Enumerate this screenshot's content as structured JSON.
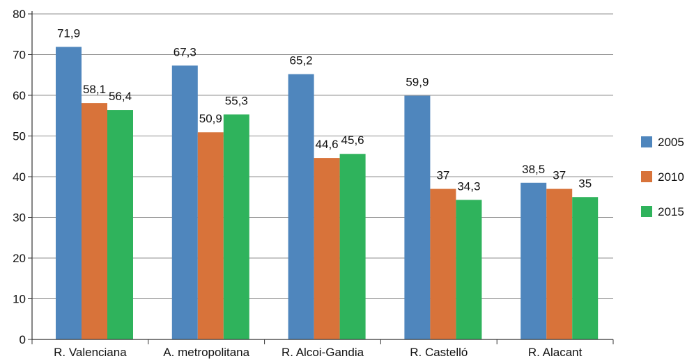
{
  "chart_data": {
    "type": "bar",
    "title": "",
    "xlabel": "",
    "ylabel": "",
    "categories": [
      "R. Valenciana",
      "A. metropolitana",
      "R. Alcoi-Gandia",
      "R. Castelló",
      "R. Alacant"
    ],
    "series": [
      {
        "name": "2005",
        "color": "#4f86bd",
        "values": [
          71.9,
          67.3,
          65.2,
          59.9,
          38.5
        ],
        "labels": [
          "71,9",
          "67,3",
          "65,2",
          "59,9",
          "38,5"
        ]
      },
      {
        "name": "2010",
        "color": "#d8733a",
        "values": [
          58.1,
          50.9,
          44.6,
          37,
          37
        ],
        "labels": [
          "58,1",
          "50,9",
          "44,6",
          "37",
          "37"
        ]
      },
      {
        "name": "2015",
        "color": "#2fb35c",
        "values": [
          56.4,
          55.3,
          45.6,
          34.3,
          35
        ],
        "labels": [
          "56,4",
          "55,3",
          "45,6",
          "34,3",
          "35"
        ]
      }
    ],
    "ylim": [
      0,
      80
    ],
    "yticks": [
      0,
      10,
      20,
      30,
      40,
      50,
      60,
      70,
      80
    ],
    "grid": true,
    "legend_position": "right"
  }
}
